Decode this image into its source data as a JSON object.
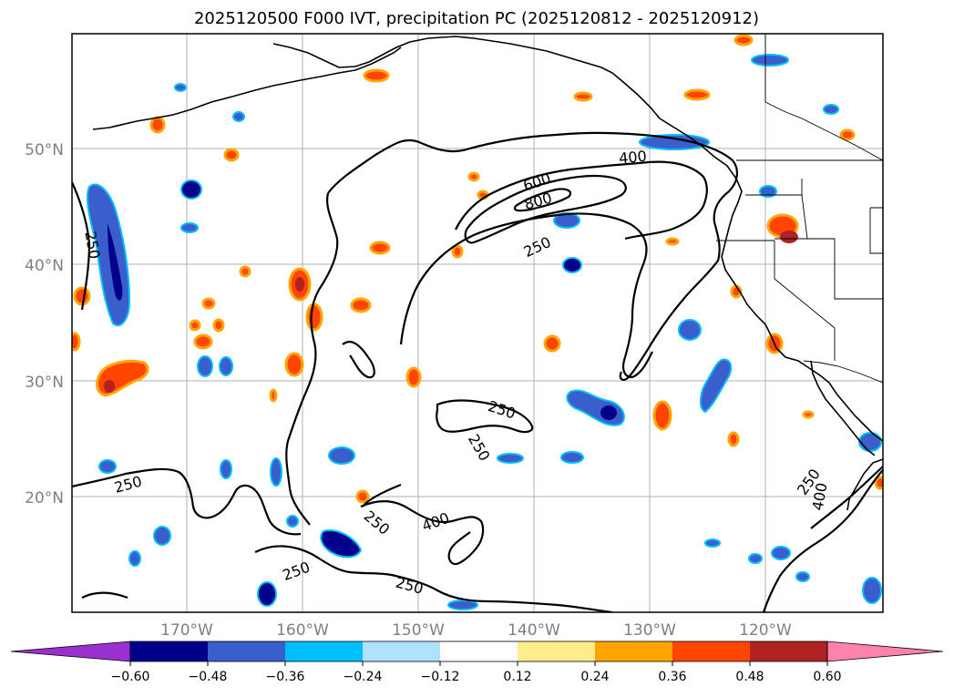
{
  "title": "2025120500 F000 IVT, precipitation PC (2025120812 - 2025120912)",
  "map": {
    "lon_ticks": [
      {
        "value": -170,
        "label": "170°W"
      },
      {
        "value": -160,
        "label": "160°W"
      },
      {
        "value": -150,
        "label": "150°W"
      },
      {
        "value": -140,
        "label": "140°W"
      },
      {
        "value": -130,
        "label": "130°W"
      },
      {
        "value": -120,
        "label": "120°W"
      }
    ],
    "lat_ticks": [
      {
        "value": 20,
        "label": "20°N"
      },
      {
        "value": 30,
        "label": "30°N"
      },
      {
        "value": 40,
        "label": "40°N"
      },
      {
        "value": 50,
        "label": "50°N"
      }
    ],
    "ivt_contour_labels": [
      "250",
      "250",
      "250",
      "250",
      "250",
      "250",
      "250",
      "400",
      "400",
      "600",
      "800",
      "250",
      "400",
      "250"
    ],
    "colors": {
      "coast": "#000000",
      "grid": "#b0b0b0"
    }
  },
  "colorbar": {
    "colors": [
      "#9b30d0",
      "#00008b",
      "#3a5fcd",
      "#00bfff",
      "#b0e2ff",
      "#ffffff",
      "#ffec8b",
      "#ffa500",
      "#ff4500",
      "#b22222",
      "#ff82ab"
    ],
    "tick_labels": [
      "−0.60",
      "−0.48",
      "−0.36",
      "−0.24",
      "−0.12",
      "0.12",
      "0.24",
      "0.36",
      "0.48",
      "0.60"
    ]
  }
}
